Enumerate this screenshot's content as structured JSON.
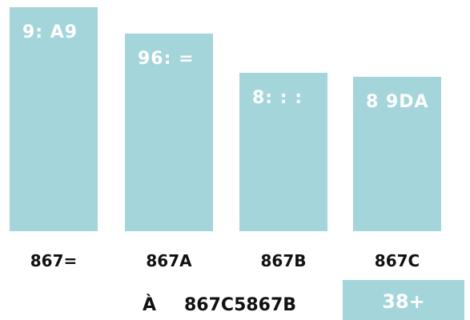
{
  "chart_data": {
    "type": "bar",
    "categories": [
      "867=",
      "867A",
      "867B",
      "867C"
    ],
    "value_labels": [
      "9: A9",
      "96: =",
      "8: : :",
      "8 9DA"
    ],
    "values": [
      280,
      247,
      198,
      193
    ],
    "ylim": [
      0,
      280
    ],
    "colors": {
      "bar": "#a3d5da",
      "bar_label": "#ffffff",
      "category_label": "#111111"
    }
  },
  "footer": {
    "prefix": "À",
    "range_text": "867C5867B",
    "badge": "38+"
  }
}
